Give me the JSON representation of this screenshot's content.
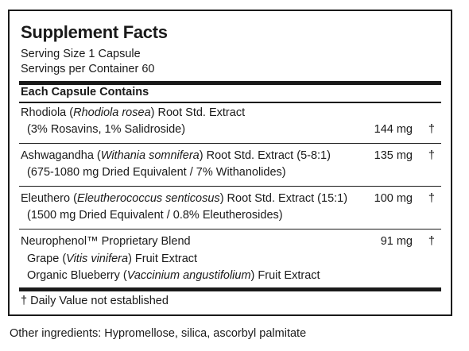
{
  "title": "Supplement Facts",
  "serving_size": "Serving Size 1 Capsule",
  "servings_per_container": "Servings per Container 60",
  "column_heading": "Each Capsule Contains",
  "ingredients": [
    {
      "name_pre": "Rhodiola (",
      "name_italic": "Rhodiola rosea",
      "name_post": ") Root Std. Extract",
      "detail": "(3% Rosavins, 1% Salidroside)",
      "amount": "144 mg",
      "dv": "†"
    },
    {
      "name_pre": "Ashwagandha (",
      "name_italic": "Withania somnifera",
      "name_post": ") Root Std. Extract (5-8:1)",
      "detail": "(675-1080 mg Dried Equivalent / 7% Withanolides)",
      "amount": "135 mg",
      "dv": "†"
    },
    {
      "name_pre": "Eleuthero (",
      "name_italic": "Eleutherococcus senticosus",
      "name_post": ") Root Std. Extract (15:1)",
      "detail": "(1500 mg Dried Equivalent / 0.8% Eleutherosides)",
      "amount": "100 mg",
      "dv": "†"
    },
    {
      "name": "Neurophenol™ Proprietary Blend",
      "amount": "91 mg",
      "dv": "†",
      "sub": [
        {
          "pre": "Grape (",
          "italic": "Vitis vinifera",
          "post": ") Fruit Extract"
        },
        {
          "pre": "Organic Blueberry (",
          "italic": "Vaccinium angustifolium",
          "post": ") Fruit Extract"
        }
      ]
    }
  ],
  "footnote": "† Daily Value not established",
  "other_ingredients": "Other ingredients: Hypromellose, silica, ascorbyl palmitate"
}
